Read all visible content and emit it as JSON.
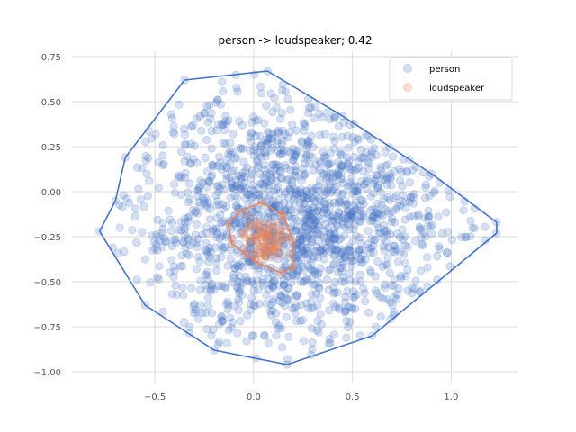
{
  "chart_data": {
    "type": "scatter",
    "title": "person -> loudspeaker; 0.42",
    "xlabel": "",
    "ylabel": "",
    "xlim": [
      -0.92,
      1.34
    ],
    "ylim": [
      -1.06,
      0.78
    ],
    "xticks": [
      -0.5,
      0.0,
      0.5,
      1.0
    ],
    "xtick_labels": [
      "−0.5",
      "0.0",
      "0.5",
      "1.0"
    ],
    "yticks": [
      -1.0,
      -0.75,
      -0.5,
      -0.25,
      0.0,
      0.25,
      0.5,
      0.75
    ],
    "ytick_labels": [
      "−1.00",
      "−0.75",
      "−0.50",
      "−0.25",
      "0.00",
      "0.25",
      "0.50",
      "0.75"
    ],
    "grid": true,
    "legend_position": "top-right",
    "series": [
      {
        "name": "person",
        "color": "#4472c4",
        "point_alpha": 0.22,
        "approx_point_count": 1600,
        "cloud": {
          "center": [
            0.23,
            -0.16
          ],
          "spread": [
            0.42,
            0.34
          ]
        },
        "hull": [
          [
            -0.78,
            -0.22
          ],
          [
            -0.7,
            -0.05
          ],
          [
            -0.65,
            0.19
          ],
          [
            -0.35,
            0.62
          ],
          [
            0.07,
            0.67
          ],
          [
            0.45,
            0.42
          ],
          [
            0.9,
            0.1
          ],
          [
            1.23,
            -0.17
          ],
          [
            1.23,
            -0.23
          ],
          [
            0.6,
            -0.8
          ],
          [
            0.17,
            -0.96
          ],
          [
            -0.2,
            -0.88
          ],
          [
            -0.55,
            -0.63
          ]
        ]
      },
      {
        "name": "loudspeaker",
        "color": "#e8825a",
        "point_alpha": 0.25,
        "approx_point_count": 90,
        "cloud": {
          "center": [
            0.05,
            -0.27
          ],
          "spread": [
            0.07,
            0.06
          ]
        },
        "hull": [
          [
            -0.13,
            -0.18
          ],
          [
            -0.07,
            -0.11
          ],
          [
            0.04,
            -0.06
          ],
          [
            0.15,
            -0.13
          ],
          [
            0.2,
            -0.28
          ],
          [
            0.2,
            -0.42
          ],
          [
            0.14,
            -0.45
          ],
          [
            0.03,
            -0.4
          ],
          [
            -0.04,
            -0.35
          ],
          [
            -0.11,
            -0.29
          ]
        ]
      }
    ]
  }
}
